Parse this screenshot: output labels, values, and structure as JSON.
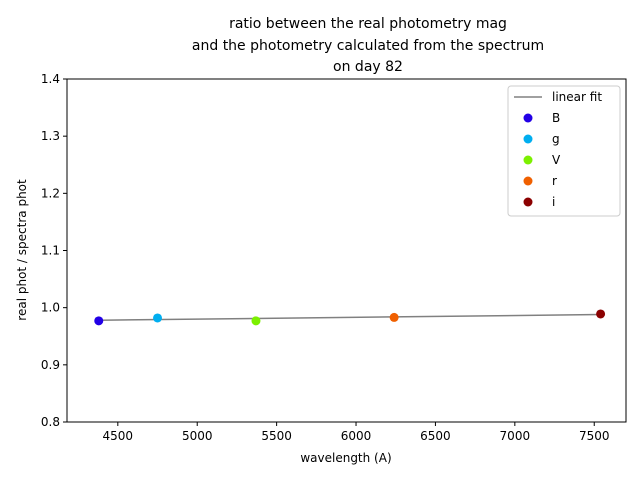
{
  "chart_data": {
    "type": "scatter",
    "title_lines": [
      "ratio between the real photometry mag",
      "and the photometry calculated from the spectrum",
      "on day 82"
    ],
    "xlabel": "wavelength (A)",
    "ylabel": "real phot / spectra phot",
    "xlim": [
      4180,
      7700
    ],
    "ylim": [
      0.8,
      1.4
    ],
    "x_ticks": [
      4500,
      5000,
      5500,
      6000,
      6500,
      7000,
      7500
    ],
    "y_ticks": [
      0.8,
      0.9,
      1.0,
      1.1,
      1.2,
      1.3,
      1.4
    ],
    "x_tick_labels": [
      "4500",
      "5000",
      "5500",
      "6000",
      "6500",
      "7000",
      "7500"
    ],
    "y_tick_labels": [
      "0.8",
      "0.9",
      "1.0",
      "1.1",
      "1.2",
      "1.3",
      "1.4"
    ],
    "grid": false,
    "legend_position": "top-right",
    "fit_line": {
      "name": "linear fit",
      "color": "#808080",
      "x": [
        4380,
        7540
      ],
      "y": [
        0.978,
        0.988
      ]
    },
    "series": [
      {
        "name": "B",
        "color": "#2200e6",
        "x": 4380,
        "y": 0.977
      },
      {
        "name": "g",
        "color": "#00aef0",
        "x": 4750,
        "y": 0.982
      },
      {
        "name": "V",
        "color": "#7cf000",
        "x": 5370,
        "y": 0.977
      },
      {
        "name": "r",
        "color": "#f06000",
        "x": 6240,
        "y": 0.983
      },
      {
        "name": "i",
        "color": "#8b0000",
        "x": 7540,
        "y": 0.989
      }
    ]
  }
}
